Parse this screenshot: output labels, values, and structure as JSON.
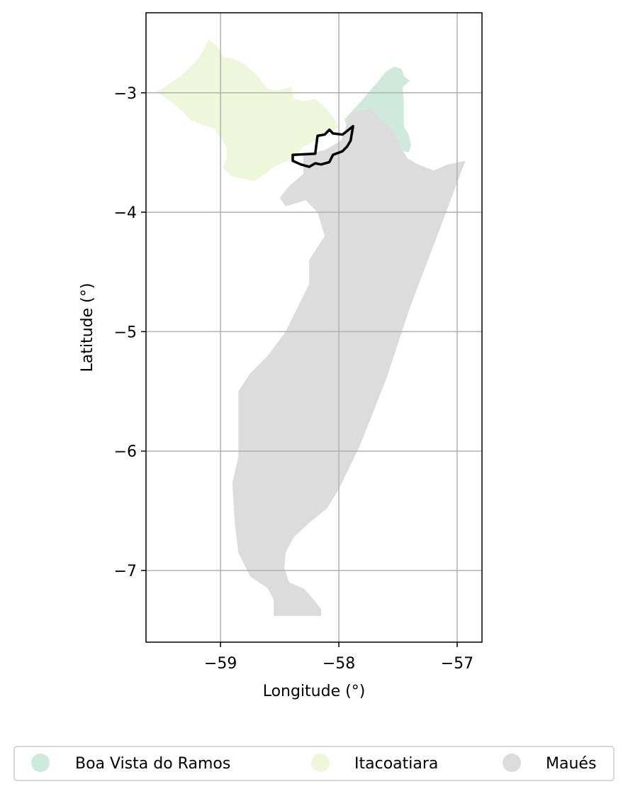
{
  "chart_data": {
    "type": "map",
    "xlabel": "Longitude (°)",
    "ylabel": "Latitude (°)",
    "xlim": [
      -59.63,
      -56.79
    ],
    "ylim": [
      -7.6,
      -2.33
    ],
    "xticks": [
      -59,
      -58,
      -57
    ],
    "xtick_labels": [
      "−59",
      "−58",
      "−57"
    ],
    "yticks": [
      -3,
      -4,
      -5,
      -6,
      -7
    ],
    "ytick_labels": [
      "−3",
      "−4",
      "−5",
      "−6",
      "−7"
    ],
    "grid": true,
    "legend_position": "bottom",
    "regions": [
      {
        "name": "Boa Vista do Ramos",
        "color": "#cdeadc",
        "polygon": [
          [
            -57.95,
            -3.22
          ],
          [
            -57.82,
            -3.08
          ],
          [
            -57.69,
            -2.93
          ],
          [
            -57.6,
            -2.82
          ],
          [
            -57.53,
            -2.78
          ],
          [
            -57.47,
            -2.8
          ],
          [
            -57.45,
            -2.86
          ],
          [
            -57.4,
            -2.9
          ],
          [
            -57.46,
            -2.95
          ],
          [
            -57.45,
            -3.1
          ],
          [
            -57.45,
            -3.28
          ],
          [
            -57.41,
            -3.35
          ],
          [
            -57.39,
            -3.44
          ],
          [
            -57.41,
            -3.5
          ],
          [
            -57.48,
            -3.48
          ],
          [
            -57.56,
            -3.36
          ],
          [
            -57.62,
            -3.25
          ],
          [
            -57.8,
            -3.22
          ],
          [
            -57.93,
            -3.3
          ]
        ]
      },
      {
        "name": "Itacoatiara",
        "color": "#eef7d9",
        "polygon": [
          [
            -59.5,
            -2.97
          ],
          [
            -59.35,
            -2.87
          ],
          [
            -59.25,
            -2.78
          ],
          [
            -59.2,
            -2.73
          ],
          [
            -59.15,
            -2.65
          ],
          [
            -59.1,
            -2.55
          ],
          [
            -59.02,
            -2.62
          ],
          [
            -58.98,
            -2.7
          ],
          [
            -58.88,
            -2.72
          ],
          [
            -58.78,
            -2.77
          ],
          [
            -58.68,
            -2.87
          ],
          [
            -58.6,
            -2.97
          ],
          [
            -58.5,
            -2.98
          ],
          [
            -58.4,
            -2.95
          ],
          [
            -58.38,
            -3.05
          ],
          [
            -58.3,
            -3.07
          ],
          [
            -58.2,
            -3.05
          ],
          [
            -58.12,
            -3.12
          ],
          [
            -58.05,
            -3.2
          ],
          [
            -58.0,
            -3.29
          ],
          [
            -58.1,
            -3.35
          ],
          [
            -58.3,
            -3.45
          ],
          [
            -58.38,
            -3.55
          ],
          [
            -58.55,
            -3.62
          ],
          [
            -58.65,
            -3.7
          ],
          [
            -58.72,
            -3.74
          ],
          [
            -58.8,
            -3.72
          ],
          [
            -58.9,
            -3.7
          ],
          [
            -58.98,
            -3.63
          ],
          [
            -58.95,
            -3.55
          ],
          [
            -58.95,
            -3.45
          ],
          [
            -59.02,
            -3.35
          ],
          [
            -59.05,
            -3.3
          ],
          [
            -59.15,
            -3.27
          ],
          [
            -59.25,
            -3.23
          ],
          [
            -59.35,
            -3.13
          ],
          [
            -59.45,
            -3.05
          ],
          [
            -59.55,
            -2.99
          ]
        ]
      },
      {
        "name": "Maués",
        "color": "#dcdcdc",
        "polygon": [
          [
            -57.9,
            -3.17
          ],
          [
            -57.73,
            -3.13
          ],
          [
            -57.65,
            -3.22
          ],
          [
            -57.55,
            -3.3
          ],
          [
            -57.48,
            -3.45
          ],
          [
            -57.42,
            -3.55
          ],
          [
            -57.33,
            -3.6
          ],
          [
            -57.2,
            -3.65
          ],
          [
            -57.08,
            -3.6
          ],
          [
            -56.93,
            -3.57
          ],
          [
            -57.15,
            -4.15
          ],
          [
            -57.4,
            -4.8
          ],
          [
            -57.6,
            -5.4
          ],
          [
            -57.82,
            -5.95
          ],
          [
            -58.0,
            -6.32
          ],
          [
            -58.1,
            -6.48
          ],
          [
            -58.25,
            -6.6
          ],
          [
            -58.38,
            -6.72
          ],
          [
            -58.45,
            -6.85
          ],
          [
            -58.46,
            -6.98
          ],
          [
            -58.42,
            -7.1
          ],
          [
            -58.3,
            -7.15
          ],
          [
            -58.25,
            -7.2
          ],
          [
            -58.15,
            -7.32
          ],
          [
            -58.15,
            -7.38
          ],
          [
            -58.55,
            -7.38
          ],
          [
            -58.55,
            -7.25
          ],
          [
            -58.6,
            -7.15
          ],
          [
            -58.75,
            -7.05
          ],
          [
            -58.85,
            -6.85
          ],
          [
            -58.88,
            -6.6
          ],
          [
            -58.9,
            -6.27
          ],
          [
            -58.85,
            -6.05
          ],
          [
            -58.85,
            -5.5
          ],
          [
            -58.75,
            -5.35
          ],
          [
            -58.6,
            -5.2
          ],
          [
            -58.45,
            -5.0
          ],
          [
            -58.35,
            -4.8
          ],
          [
            -58.25,
            -4.6
          ],
          [
            -58.25,
            -4.4
          ],
          [
            -58.12,
            -4.2
          ],
          [
            -58.18,
            -4.0
          ],
          [
            -58.28,
            -3.9
          ],
          [
            -58.45,
            -3.95
          ],
          [
            -58.5,
            -3.88
          ],
          [
            -58.42,
            -3.78
          ],
          [
            -58.3,
            -3.68
          ],
          [
            -58.3,
            -3.52
          ],
          [
            -58.12,
            -3.48
          ],
          [
            -57.98,
            -3.4
          ]
        ]
      }
    ],
    "highlight": {
      "color": "#000000",
      "polygon": [
        [
          -58.39,
          -3.52
        ],
        [
          -58.2,
          -3.51
        ],
        [
          -58.18,
          -3.36
        ],
        [
          -58.12,
          -3.35
        ],
        [
          -58.08,
          -3.31
        ],
        [
          -58.05,
          -3.34
        ],
        [
          -57.97,
          -3.35
        ],
        [
          -57.93,
          -3.32
        ],
        [
          -57.88,
          -3.28
        ],
        [
          -57.9,
          -3.4
        ],
        [
          -57.93,
          -3.45
        ],
        [
          -57.97,
          -3.49
        ],
        [
          -58.05,
          -3.52
        ],
        [
          -58.08,
          -3.58
        ],
        [
          -58.15,
          -3.6
        ],
        [
          -58.2,
          -3.59
        ],
        [
          -58.25,
          -3.62
        ],
        [
          -58.32,
          -3.6
        ],
        [
          -58.39,
          -3.57
        ]
      ]
    },
    "legend": [
      {
        "name": "Boa Vista do Ramos",
        "color": "#cdeadc"
      },
      {
        "name": "Itacoatiara",
        "color": "#eef7d9"
      },
      {
        "name": "Maués",
        "color": "#dcdcdc"
      }
    ]
  }
}
